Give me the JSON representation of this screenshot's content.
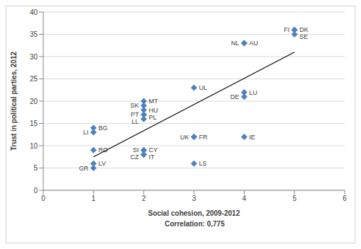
{
  "chart_data": {
    "type": "scatter",
    "x_label": "Social cohesion, 2009-2012",
    "y_label": "Trust in political parties, 2012",
    "annotation": "Correlation: 0,775",
    "labels": [
      "FI",
      "DK",
      "SE",
      "NL",
      "AU",
      "UL",
      "LU",
      "DE",
      "MT",
      "SK",
      "HU",
      "PT",
      "PL",
      "LL",
      "BG",
      "LI",
      "UK",
      "FR",
      "IE",
      "RO",
      "SI",
      "CY",
      "CZ",
      "IT",
      "LV",
      "LS",
      "GR"
    ],
    "x": [
      5,
      5,
      5,
      4,
      4,
      3,
      4,
      4,
      2,
      2,
      2,
      2,
      2,
      2,
      1,
      1,
      3,
      3,
      4,
      1,
      2,
      2,
      2,
      2,
      1,
      3,
      1
    ],
    "y": [
      36,
      36,
      35,
      33,
      33,
      23,
      22,
      21,
      20,
      19,
      18,
      17,
      17,
      16,
      14,
      13,
      12,
      12,
      12,
      9,
      9,
      9,
      8,
      8,
      6,
      6,
      5
    ],
    "color": "#4f81bd",
    "marker": "diamond",
    "trendline": {
      "x": [
        1,
        5
      ],
      "y": [
        7.5,
        31
      ],
      "color": "#000000",
      "line_style": "solid"
    },
    "xlim": [
      0,
      6
    ],
    "xticks": [
      0,
      1,
      2,
      3,
      4,
      5,
      6
    ],
    "ylim": [
      0,
      40
    ],
    "yticks": [
      0,
      5,
      10,
      15,
      20,
      25,
      30,
      35,
      40
    ],
    "grid": true
  }
}
